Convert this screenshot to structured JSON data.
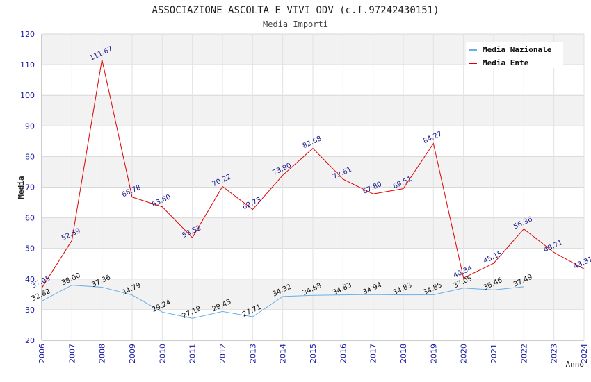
{
  "chart_data": {
    "type": "line",
    "title": "ASSOCIAZIONE ASCOLTA E VIVI ODV (c.f.97242430151)",
    "subtitle": "Media Importi",
    "xlabel": "Anno",
    "ylabel": "Media",
    "ylim": [
      20,
      120
    ],
    "yticks": [
      20,
      30,
      40,
      50,
      60,
      70,
      80,
      90,
      100,
      110,
      120
    ],
    "categories": [
      "2006",
      "2007",
      "2008",
      "2009",
      "2010",
      "2011",
      "2012",
      "2013",
      "2014",
      "2015",
      "2016",
      "2017",
      "2018",
      "2019",
      "2020",
      "2021",
      "2022",
      "2023",
      "2024"
    ],
    "legend_position": "top-right",
    "grid": true,
    "series": [
      {
        "name": "Media Nazionale",
        "color": "#6aaee6",
        "values": [
          32.82,
          38.0,
          37.36,
          34.79,
          29.24,
          27.19,
          29.43,
          27.71,
          34.32,
          34.68,
          34.83,
          34.94,
          34.83,
          34.85,
          37.05,
          36.46,
          37.49,
          null,
          null
        ],
        "labels": [
          "32.82",
          "38.00",
          "37.36",
          "34.79",
          "29.24",
          "27.19",
          "29.43",
          "27.71",
          "34.32",
          "34.68",
          "34.83",
          "34.94",
          "34.83",
          "34.85",
          "37.05",
          "36.46",
          "37.49",
          "",
          ""
        ]
      },
      {
        "name": "Media Ente",
        "color": "#dd0000",
        "values": [
          37.05,
          52.59,
          111.67,
          66.78,
          63.6,
          53.52,
          70.22,
          62.73,
          73.9,
          82.68,
          72.61,
          67.8,
          69.51,
          84.27,
          40.34,
          45.15,
          56.36,
          48.71,
          43.31
        ],
        "labels": [
          "37.05",
          "52.59",
          "111.67",
          "66.78",
          "63.60",
          "53.52",
          "70.22",
          "62.73",
          "73.90",
          "82.68",
          "72.61",
          "67.80",
          "69.51",
          "84.27",
          "40.34",
          "45.15",
          "56.36",
          "48.71",
          "43.31"
        ]
      }
    ]
  }
}
